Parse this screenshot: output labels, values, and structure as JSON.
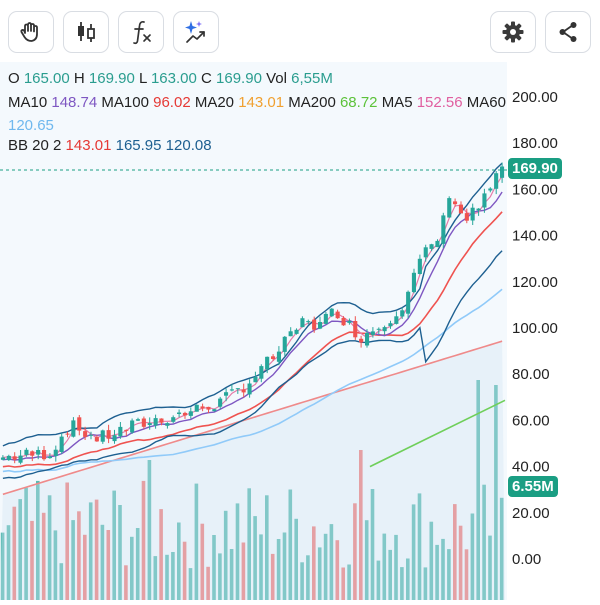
{
  "toolbar": {
    "left_buttons": [
      {
        "name": "hand-icon"
      },
      {
        "name": "candlestick-icon"
      },
      {
        "name": "function-icon"
      },
      {
        "name": "sparkle-trend-icon"
      }
    ],
    "right_buttons": [
      {
        "name": "gear-icon"
      },
      {
        "name": "share-icon"
      }
    ]
  },
  "legend": {
    "ohlc": {
      "o_label": "O",
      "o": "165.00",
      "h_label": "H",
      "h": "169.90",
      "l_label": "L",
      "l": "163.00",
      "c_label": "C",
      "c": "169.90",
      "vol_label": "Vol",
      "vol": "6,55M"
    },
    "ma": {
      "ma10_label": "MA10",
      "ma10": "148.74",
      "ma100_label": "MA100",
      "ma100": "96.02",
      "ma20_label": "MA20",
      "ma20": "143.01",
      "ma200_label": "MA200",
      "ma200": "68.72",
      "ma5_label": "MA5",
      "ma5": "152.56",
      "ma60_label": "MA60",
      "ma60": "120.65"
    },
    "bb": {
      "label": "BB 20 2",
      "mid": "143.01",
      "upper": "165.95",
      "lower": "120.08"
    }
  },
  "colors": {
    "up": "#26a69a",
    "down": "#ef5350",
    "ma5": "#e57ba8",
    "ma10": "#7e57c2",
    "ma20": "#ef5350",
    "ma60": "#90caf9",
    "ma100": "#ef8a8a",
    "ma200": "#6fcf5a",
    "bb": "#1e6091",
    "price_tag": "#1a9e83"
  },
  "axis": {
    "ticks": [
      "200.00",
      "180.00",
      "160.00",
      "140.00",
      "120.00",
      "100.00",
      "80.00",
      "60.00",
      "40.00",
      "20.00",
      "0.00"
    ]
  },
  "last_price": "169.90",
  "last_volume": "6.55M"
}
